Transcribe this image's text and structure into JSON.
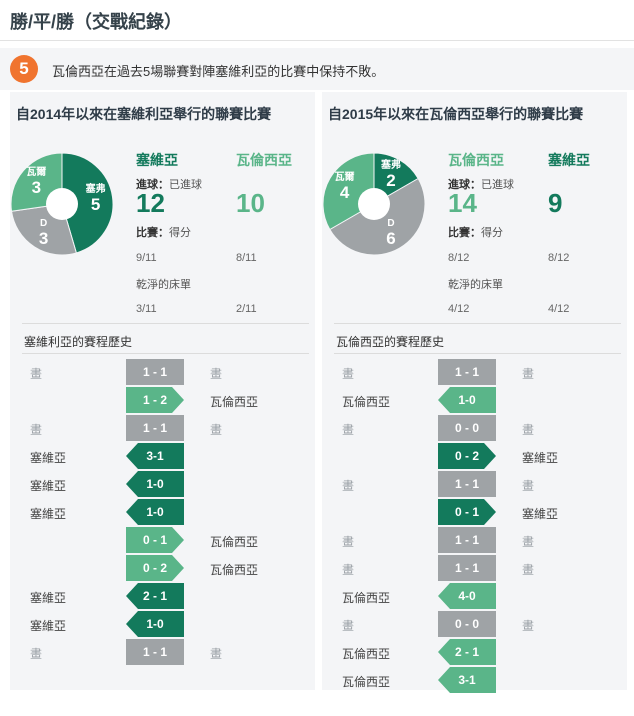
{
  "header": {
    "title": "勝/平/勝（交戰紀錄）"
  },
  "callout": {
    "badge": "5",
    "text": "瓦倫西亞在過去5場聯賽對陣塞維利亞的比賽中保持不敗。"
  },
  "colors": {
    "dark_green": "#137a5c",
    "light_green": "#5ab589",
    "gray": "#9fa3a6",
    "orange": "#f0742f"
  },
  "panels": [
    {
      "title": "自2014年以來在塞維利亞舉行的聯賽比賽",
      "pie": {
        "segments": [
          {
            "name": "塞弗",
            "value": 5,
            "color": "#137a5c"
          },
          {
            "name": "D",
            "value": 3,
            "color": "#9fa3a6"
          },
          {
            "name": "瓦爾",
            "value": 3,
            "color": "#5ab589"
          }
        ]
      },
      "team_a": {
        "name": "塞維亞",
        "goals": "12",
        "played": "9/11",
        "clean": "3/11"
      },
      "team_b": {
        "name": "瓦倫西亞",
        "goals": "10",
        "played": "8/11",
        "clean": "2/11"
      },
      "labels": {
        "goals": "進球：",
        "goals_sub": "已進球",
        "matches": "比賽：",
        "matches_sub": "得分",
        "clean_sheets": "乾淨的床單"
      },
      "history_title": "塞維利亞的賽程歷史",
      "history": [
        {
          "left": "畫",
          "score": "1 - 1",
          "right": "畫",
          "kind": "gray"
        },
        {
          "left": "",
          "score": "1 - 2",
          "right": "瓦倫西亞",
          "kind": "light-r"
        },
        {
          "left": "畫",
          "score": "1 - 1",
          "right": "畫",
          "kind": "gray"
        },
        {
          "left": "塞維亞",
          "score": "3-1",
          "right": "",
          "kind": "dark-l"
        },
        {
          "left": "塞維亞",
          "score": "1-0",
          "right": "",
          "kind": "dark-l"
        },
        {
          "left": "塞維亞",
          "score": "1-0",
          "right": "",
          "kind": "dark-l"
        },
        {
          "left": "",
          "score": "0 - 1",
          "right": "瓦倫西亞",
          "kind": "light-r"
        },
        {
          "left": "",
          "score": "0 - 2",
          "right": "瓦倫西亞",
          "kind": "light-r"
        },
        {
          "left": "塞維亞",
          "score": "2 - 1",
          "right": "",
          "kind": "dark-l"
        },
        {
          "left": "塞維亞",
          "score": "1-0",
          "right": "",
          "kind": "dark-l"
        },
        {
          "left": "畫",
          "score": "1 - 1",
          "right": "畫",
          "kind": "gray"
        }
      ]
    },
    {
      "title": "自2015年以來在瓦倫西亞舉行的聯賽比賽",
      "pie": {
        "segments": [
          {
            "name": "塞弗",
            "value": 2,
            "color": "#137a5c"
          },
          {
            "name": "D",
            "value": 6,
            "color": "#9fa3a6"
          },
          {
            "name": "瓦爾",
            "value": 4,
            "color": "#5ab589"
          }
        ]
      },
      "team_a": {
        "name": "瓦倫西亞",
        "goals": "14",
        "played": "8/12",
        "clean": "4/12"
      },
      "team_b": {
        "name": "塞維亞",
        "goals": "9",
        "played": "8/12",
        "clean": "4/12"
      },
      "labels": {
        "goals": "進球：",
        "goals_sub": "已進球",
        "matches": "比賽：",
        "matches_sub": "得分",
        "clean_sheets": "乾淨的床單"
      },
      "history_title": "瓦倫西亞的賽程歷史",
      "history": [
        {
          "left": "畫",
          "score": "1 - 1",
          "right": "畫",
          "kind": "gray"
        },
        {
          "left": "瓦倫西亞",
          "score": "1-0",
          "right": "",
          "kind": "light-l"
        },
        {
          "left": "畫",
          "score": "0 - 0",
          "right": "畫",
          "kind": "gray"
        },
        {
          "left": "",
          "score": "0 - 2",
          "right": "塞維亞",
          "kind": "dark-r"
        },
        {
          "left": "畫",
          "score": "1 - 1",
          "right": "畫",
          "kind": "gray"
        },
        {
          "left": "",
          "score": "0 - 1",
          "right": "塞維亞",
          "kind": "dark-r"
        },
        {
          "left": "畫",
          "score": "1 - 1",
          "right": "畫",
          "kind": "gray"
        },
        {
          "left": "畫",
          "score": "1 - 1",
          "right": "畫",
          "kind": "gray"
        },
        {
          "left": "瓦倫西亞",
          "score": "4-0",
          "right": "",
          "kind": "light-l"
        },
        {
          "left": "畫",
          "score": "0 - 0",
          "right": "畫",
          "kind": "gray"
        },
        {
          "left": "瓦倫西亞",
          "score": "2 - 1",
          "right": "",
          "kind": "light-l"
        },
        {
          "left": "瓦倫西亞",
          "score": "3-1",
          "right": "",
          "kind": "light-l"
        }
      ]
    }
  ]
}
